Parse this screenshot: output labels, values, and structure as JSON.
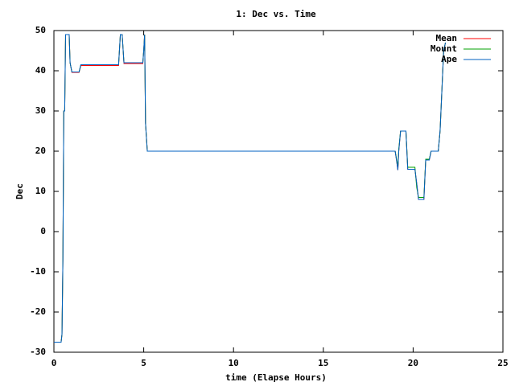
{
  "chart_data": {
    "type": "line",
    "title": "1: Dec vs. Time",
    "x_label": "time (Elapse Hours)",
    "y_label": "Dec",
    "x": [
      0,
      0.4,
      0.45,
      0.5,
      0.55,
      0.6,
      0.65,
      0.85,
      0.9,
      1.0,
      1.4,
      1.5,
      3.6,
      3.7,
      3.8,
      3.9,
      4.95,
      5.0,
      5.05,
      5.1,
      5.2,
      12.4,
      16.1,
      19.0,
      19.1,
      19.15,
      19.2,
      19.3,
      19.6,
      19.7,
      20.1,
      20.2,
      20.3,
      20.6,
      20.7,
      20.9,
      21.0,
      21.4,
      21.5,
      21.6,
      21.7,
      21.8
    ],
    "series": [
      {
        "name": "Mean",
        "color": "#ff0000",
        "values": [
          -27.5,
          -27.5,
          -25.5,
          -7,
          30,
          30,
          49,
          49,
          42,
          39.6,
          39.6,
          41.3,
          41.3,
          49,
          49,
          41.8,
          41.8,
          45,
          49,
          27,
          20,
          20,
          20,
          20,
          17,
          15.3,
          20,
          25,
          25,
          15.5,
          15.5,
          12,
          8,
          8,
          17.8,
          17.8,
          20,
          20,
          25,
          35,
          45,
          47
        ]
      },
      {
        "name": "Mount",
        "color": "#00a000",
        "values": [
          -27.5,
          -27.5,
          -25.5,
          -7,
          30,
          30,
          49,
          49,
          42,
          39.7,
          39.7,
          41.5,
          41.5,
          49,
          49,
          42,
          42,
          45,
          49,
          27,
          20,
          20,
          20,
          20,
          17.5,
          15.8,
          20.5,
          25,
          25,
          16,
          16,
          11,
          8.5,
          8.5,
          18,
          18,
          20,
          20,
          25,
          35,
          45,
          47
        ]
      },
      {
        "name": "Ape",
        "color": "#0060c0",
        "values": [
          -27.5,
          -27.5,
          -25.5,
          -7,
          30,
          30,
          49,
          49,
          42,
          39.7,
          39.7,
          41.5,
          41.5,
          49,
          49,
          42,
          42,
          45,
          49,
          27,
          20,
          20,
          20,
          20,
          17,
          15.3,
          20,
          25,
          25,
          15.5,
          15.5,
          12,
          8,
          8,
          17.8,
          17.8,
          20,
          20,
          25,
          35,
          45,
          47
        ]
      }
    ],
    "xlim": [
      0,
      25
    ],
    "xticks": [
      0,
      5,
      10,
      15,
      20,
      25
    ],
    "ylim": [
      -30,
      50
    ],
    "yticks": [
      -30,
      -20,
      -10,
      0,
      10,
      20,
      30,
      40,
      50
    ],
    "legend": "top-right",
    "grid": false
  }
}
